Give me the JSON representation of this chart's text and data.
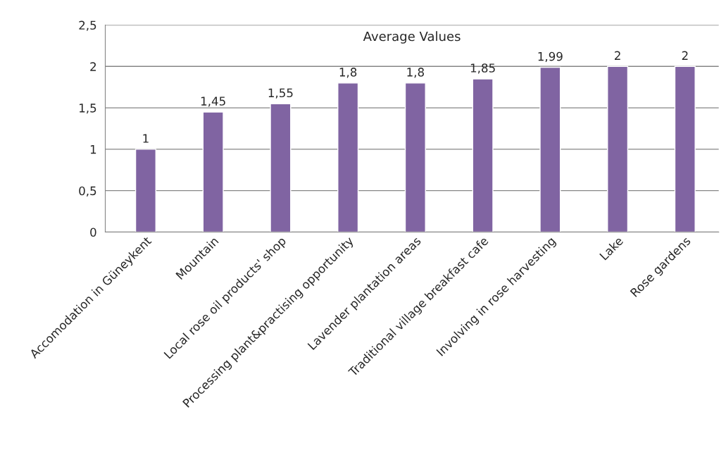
{
  "chart_data": {
    "type": "bar",
    "title": "Average Values",
    "categories": [
      "Accomodation in Güneykent",
      "Mountain",
      "Local rose oil products' shop",
      "Processing plant&practising opportunity",
      "Lavender plantation areas",
      "Traditional village breakfast cafe",
      "Involving in rose harvesting",
      "Lake",
      "Rose gardens"
    ],
    "values": [
      1,
      1.45,
      1.55,
      1.8,
      1.8,
      1.85,
      1.99,
      2,
      2
    ],
    "value_labels": [
      "1",
      "1,45",
      "1,55",
      "1,8",
      "1,8",
      "1,85",
      "1,99",
      "2",
      "2"
    ],
    "color": "#8064a2",
    "ylim": [
      0,
      2.5
    ],
    "yticks": [
      0,
      {
        "value": 0.5,
        "label": "0,5"
      },
      1,
      {
        "value": 1.5,
        "label": "1,5"
      },
      2,
      {
        "value": 2.5,
        "label": "2,5"
      }
    ],
    "grid": "y",
    "legend": false
  }
}
